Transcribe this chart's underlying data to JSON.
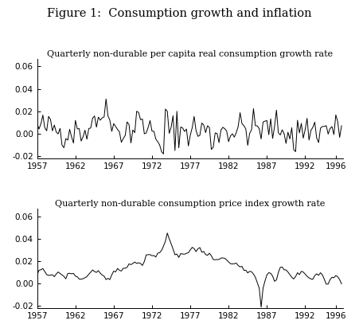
{
  "title": "Figure 1:  Consumption growth and inflation",
  "subtitle1": "Quarterly non-durable per capita real consumption growth rate",
  "subtitle2": "Quarterly non-durable consumption price index growth rate",
  "year_start": 1957,
  "year_end": 1997,
  "n_quarters": 160,
  "ylim": [
    -0.022,
    0.067
  ],
  "yticks": [
    -0.02,
    0.0,
    0.02,
    0.04,
    0.06
  ],
  "xticks": [
    1957,
    1962,
    1967,
    1972,
    1977,
    1982,
    1987,
    1992,
    1996
  ],
  "line_color": "#000000",
  "line_width": 0.7,
  "title_fontsize": 10.5,
  "subtitle_fontsize": 8.0,
  "tick_fontsize": 7.5
}
